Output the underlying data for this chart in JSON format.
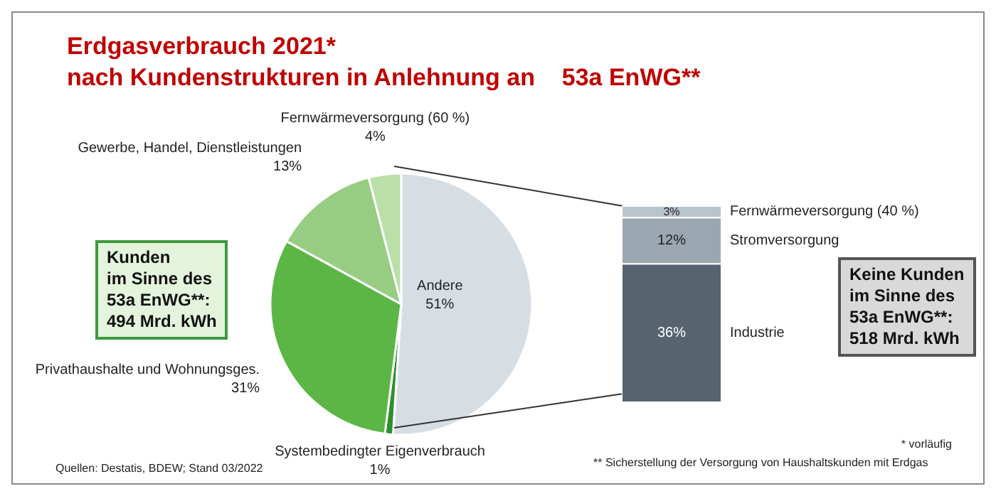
{
  "chart_data": [
    {
      "type": "pie",
      "title": "Erdgasverbrauch 2021*",
      "subtitle": "nach Kundenstrukturen in Anlehnung an    53a EnWG**",
      "categories": [
        "Andere",
        "Systembedingter Eigenverbrauch",
        "Privathaushalte und Wohnungsges.",
        "Gewerbe, Handel, Dienstleistungen",
        "Fernwärmeversorgung (60 %)"
      ],
      "values": [
        51,
        1,
        31,
        13,
        4
      ],
      "value_labels": [
        "51%",
        "1%",
        "31%",
        "13%",
        "4%"
      ],
      "colors": [
        "#d6dee4",
        "#2f8f2f",
        "#5cb646",
        "#97cd82",
        "#badfa9"
      ],
      "annotations": [
        "Kunden\nim Sinne des\n53a EnWG**:\n494 Mrd. kWh",
        "Quellen: Destatis, BDEW; Stand 03/2022"
      ],
      "legend": false
    },
    {
      "type": "bar",
      "stacked": true,
      "categories": [
        null
      ],
      "series": [
        {
          "name": "Industrie",
          "color": "#56646f",
          "values": [
            36
          ],
          "value_labels": [
            "36%"
          ]
        },
        {
          "name": "Stromversorgung",
          "color": "#9ba7b0",
          "values": [
            12
          ],
          "value_labels": [
            "12%"
          ]
        },
        {
          "name": "Fernwärmeversorgung (40 %)",
          "color": "#b9c5cd",
          "values": [
            3
          ],
          "value_labels": [
            "3%"
          ]
        }
      ],
      "annotations": [
        "Keine Kunden\nim Sinne des\n53a EnWG**:\n518 Mrd. kWh",
        "* vorläufig",
        "** Sicherstellung der Versorgung von Haushaltskunden mit Erdgas"
      ],
      "legend": false
    }
  ]
}
